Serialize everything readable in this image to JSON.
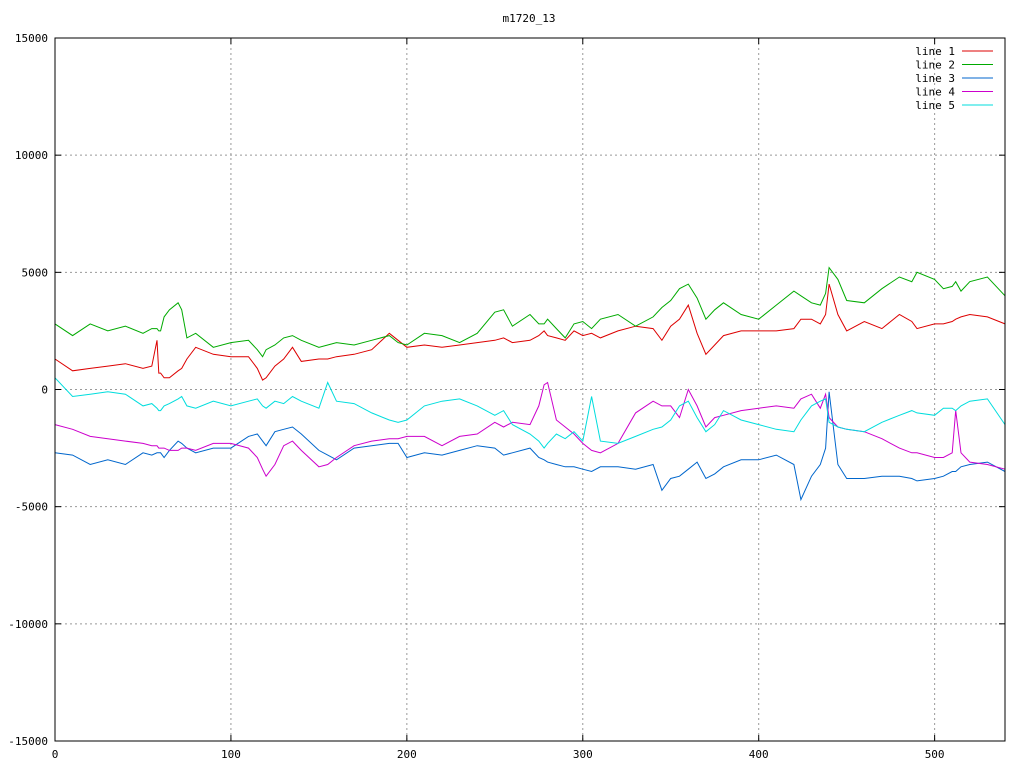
{
  "chart_data": {
    "type": "line",
    "title": "m1720_13",
    "xlim": [
      0,
      540
    ],
    "ylim": [
      -15000,
      15000
    ],
    "x_ticks": [
      0,
      100,
      200,
      300,
      400,
      500
    ],
    "y_ticks": [
      -15000,
      -10000,
      -5000,
      0,
      5000,
      10000,
      15000
    ],
    "grid": true,
    "grid_style": "dotted",
    "legend_position": "top-right",
    "x": [
      0,
      10,
      20,
      30,
      40,
      50,
      55,
      58,
      59,
      60,
      62,
      65,
      70,
      72,
      75,
      80,
      90,
      100,
      110,
      115,
      118,
      120,
      125,
      130,
      135,
      140,
      150,
      155,
      160,
      170,
      180,
      190,
      195,
      200,
      210,
      220,
      230,
      240,
      250,
      255,
      260,
      270,
      275,
      278,
      280,
      285,
      290,
      295,
      300,
      305,
      310,
      320,
      330,
      340,
      345,
      350,
      355,
      360,
      365,
      370,
      375,
      380,
      390,
      400,
      410,
      420,
      424,
      430,
      435,
      438,
      440,
      445,
      450,
      460,
      470,
      480,
      487,
      490,
      500,
      505,
      510,
      512,
      515,
      520,
      530,
      540
    ],
    "series": [
      {
        "name": "line 1",
        "color": "#dd0000",
        "values": [
          1300,
          800,
          900,
          1000,
          1100,
          900,
          1000,
          2100,
          700,
          700,
          500,
          500,
          800,
          900,
          1300,
          1800,
          1500,
          1400,
          1400,
          900,
          400,
          500,
          1000,
          1300,
          1800,
          1200,
          1300,
          1300,
          1400,
          1500,
          1700,
          2400,
          2100,
          1800,
          1900,
          1800,
          1900,
          2000,
          2100,
          2200,
          2000,
          2100,
          2300,
          2500,
          2300,
          2200,
          2100,
          2500,
          2300,
          2400,
          2200,
          2500,
          2700,
          2600,
          2100,
          2700,
          3000,
          3600,
          2400,
          1500,
          1900,
          2300,
          2500,
          2500,
          2500,
          2600,
          3000,
          3000,
          2800,
          3200,
          4500,
          3200,
          2500,
          2900,
          2600,
          3200,
          2900,
          2600,
          2800,
          2800,
          2900,
          3000,
          3100,
          3200,
          3100,
          2800
        ]
      },
      {
        "name": "line 2",
        "color": "#00aa00",
        "values": [
          2800,
          2300,
          2800,
          2500,
          2700,
          2400,
          2600,
          2600,
          2500,
          2500,
          3100,
          3400,
          3700,
          3400,
          2200,
          2400,
          1800,
          2000,
          2100,
          1700,
          1400,
          1700,
          1900,
          2200,
          2300,
          2100,
          1800,
          1900,
          2000,
          1900,
          2100,
          2300,
          2000,
          1900,
          2400,
          2300,
          2000,
          2400,
          3300,
          3400,
          2700,
          3200,
          2800,
          2800,
          3000,
          2600,
          2200,
          2800,
          2900,
          2600,
          3000,
          3200,
          2700,
          3100,
          3500,
          3800,
          4300,
          4500,
          3900,
          3000,
          3400,
          3700,
          3200,
          3000,
          3600,
          4200,
          4000,
          3700,
          3600,
          4100,
          5200,
          4700,
          3800,
          3700,
          4300,
          4800,
          4600,
          5000,
          4700,
          4300,
          4400,
          4600,
          4200,
          4600,
          4800,
          4000
        ]
      },
      {
        "name": "line 3",
        "color": "#0066cc",
        "values": [
          -2700,
          -2800,
          -3200,
          -3000,
          -3200,
          -2700,
          -2800,
          -2700,
          -2700,
          -2700,
          -2900,
          -2600,
          -2200,
          -2300,
          -2500,
          -2700,
          -2500,
          -2500,
          -2000,
          -1900,
          -2200,
          -2400,
          -1800,
          -1700,
          -1600,
          -1900,
          -2600,
          -2800,
          -3000,
          -2500,
          -2400,
          -2300,
          -2300,
          -2900,
          -2700,
          -2800,
          -2600,
          -2400,
          -2500,
          -2800,
          -2700,
          -2500,
          -2900,
          -3000,
          -3100,
          -3200,
          -3300,
          -3300,
          -3400,
          -3500,
          -3300,
          -3300,
          -3400,
          -3200,
          -4300,
          -3800,
          -3700,
          -3400,
          -3100,
          -3800,
          -3600,
          -3300,
          -3000,
          -3000,
          -2800,
          -3200,
          -4700,
          -3700,
          -3200,
          -2500,
          -100,
          -3200,
          -3800,
          -3800,
          -3700,
          -3700,
          -3800,
          -3900,
          -3800,
          -3700,
          -3500,
          -3500,
          -3300,
          -3200,
          -3100,
          -3500
        ]
      },
      {
        "name": "line 4",
        "color": "#cc00cc",
        "values": [
          -1500,
          -1700,
          -2000,
          -2100,
          -2200,
          -2300,
          -2400,
          -2400,
          -2500,
          -2500,
          -2500,
          -2600,
          -2600,
          -2500,
          -2500,
          -2600,
          -2300,
          -2300,
          -2500,
          -2900,
          -3400,
          -3700,
          -3200,
          -2400,
          -2200,
          -2600,
          -3300,
          -3200,
          -2900,
          -2400,
          -2200,
          -2100,
          -2100,
          -2000,
          -2000,
          -2400,
          -2000,
          -1900,
          -1400,
          -1600,
          -1400,
          -1500,
          -700,
          200,
          300,
          -1300,
          -1600,
          -1900,
          -2300,
          -2600,
          -2700,
          -2300,
          -1000,
          -500,
          -700,
          -700,
          -1200,
          0,
          -700,
          -1600,
          -1200,
          -1100,
          -900,
          -800,
          -700,
          -800,
          -400,
          -200,
          -800,
          -200,
          -1200,
          -1600,
          -1700,
          -1800,
          -2100,
          -2500,
          -2700,
          -2700,
          -2900,
          -2900,
          -2700,
          -900,
          -2700,
          -3100,
          -3200,
          -3400
        ]
      },
      {
        "name": "line 5",
        "color": "#00dddd",
        "values": [
          500,
          -300,
          -200,
          -100,
          -200,
          -700,
          -600,
          -800,
          -900,
          -900,
          -700,
          -600,
          -400,
          -300,
          -700,
          -800,
          -500,
          -700,
          -500,
          -400,
          -700,
          -800,
          -500,
          -600,
          -300,
          -500,
          -800,
          300,
          -500,
          -600,
          -1000,
          -1300,
          -1400,
          -1300,
          -700,
          -500,
          -400,
          -700,
          -1100,
          -900,
          -1500,
          -1900,
          -2200,
          -2500,
          -2300,
          -1900,
          -2100,
          -1800,
          -2200,
          -300,
          -2200,
          -2300,
          -2000,
          -1700,
          -1600,
          -1300,
          -700,
          -500,
          -1200,
          -1800,
          -1500,
          -900,
          -1300,
          -1500,
          -1700,
          -1800,
          -1300,
          -700,
          -500,
          -400,
          -1400,
          -1600,
          -1700,
          -1800,
          -1400,
          -1100,
          -900,
          -1000,
          -1100,
          -800,
          -800,
          -900,
          -700,
          -500,
          -400,
          -1500
        ]
      }
    ]
  }
}
